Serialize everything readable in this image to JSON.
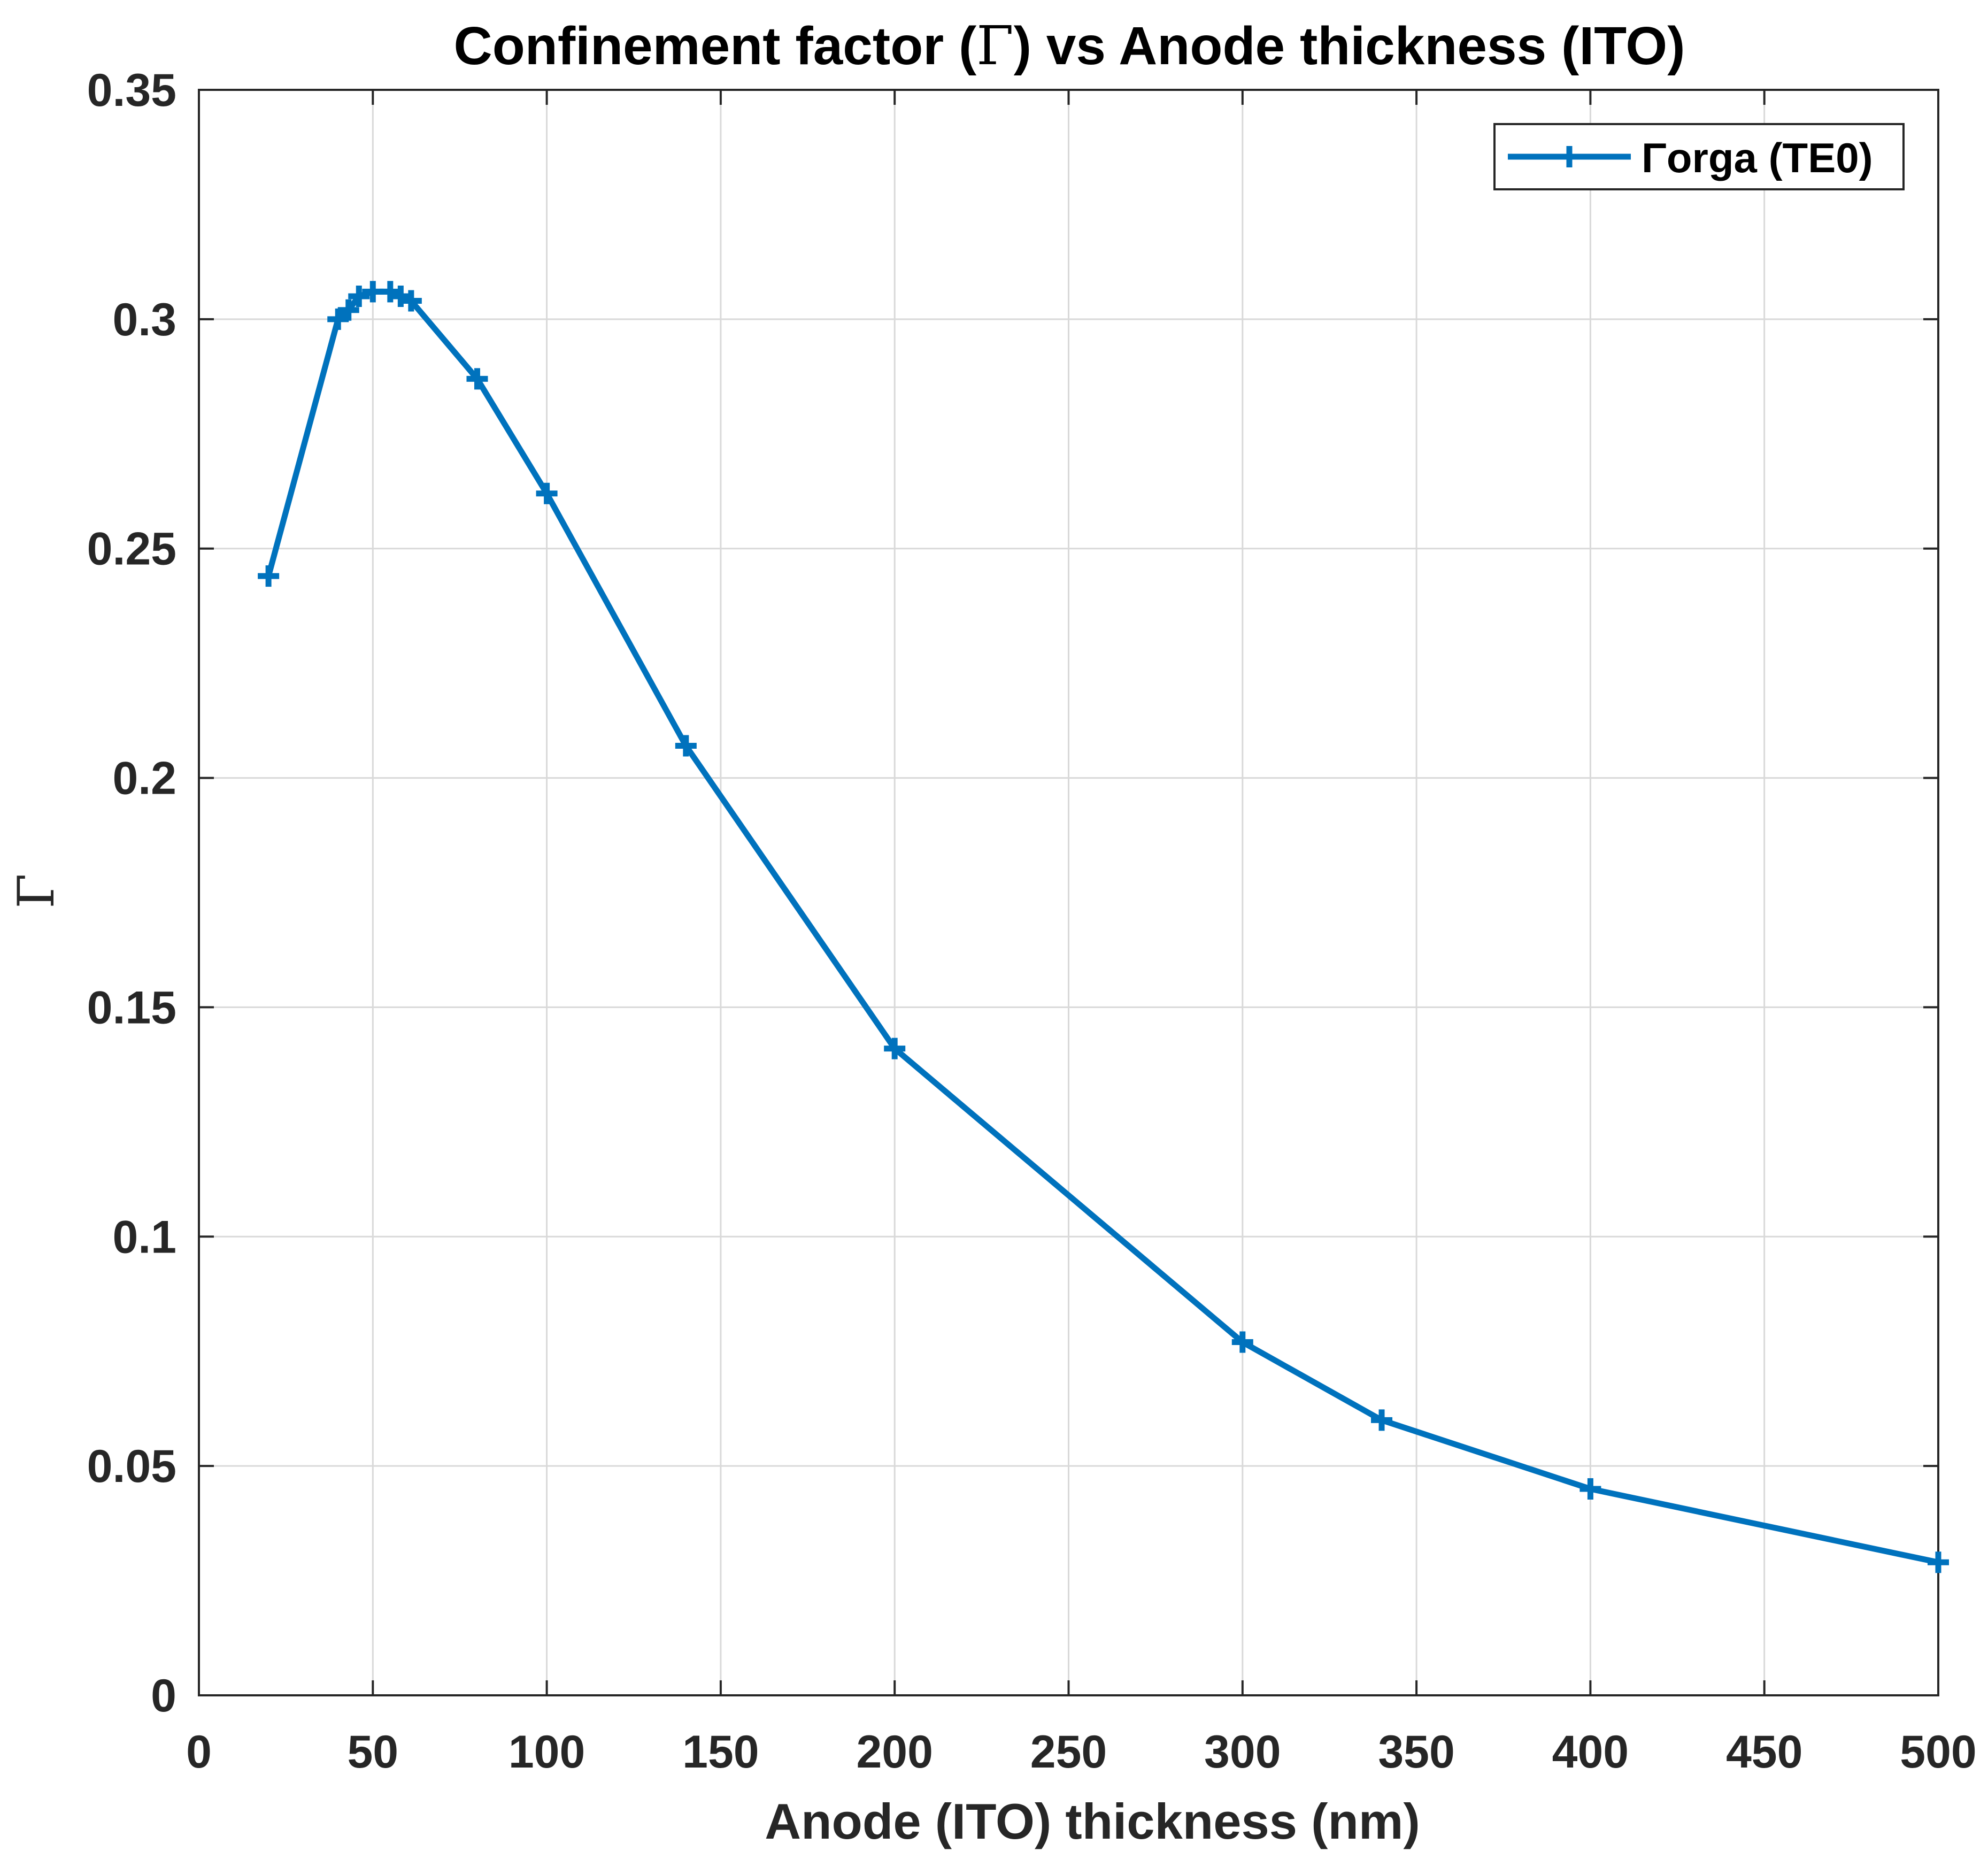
{
  "chart_data": {
    "type": "line",
    "title_prefix": "Confinement factor (",
    "title_symbol": "Γ",
    "title_suffix": ") vs Anode thickness (ITO)",
    "xlabel": "Anode (ITO) thickness (nm)",
    "ylabel": "Γ",
    "xlim": [
      0,
      500
    ],
    "ylim": [
      0,
      0.35
    ],
    "x_ticks": [
      0,
      50,
      100,
      150,
      200,
      250,
      300,
      350,
      400,
      450,
      500
    ],
    "x_tick_labels": [
      "0",
      "50",
      "100",
      "150",
      "200",
      "250",
      "300",
      "350",
      "400",
      "450",
      "500"
    ],
    "y_ticks": [
      0,
      0.05,
      0.1,
      0.15,
      0.2,
      0.25,
      0.3,
      0.35
    ],
    "y_tick_labels": [
      "0",
      "0.05",
      "0.1",
      "0.15",
      "0.2",
      "0.25",
      "0.3",
      "0.35"
    ],
    "grid": true,
    "legend_position": "top-right",
    "series": [
      {
        "name": "Γorga (TE0)",
        "color": "#0072BD",
        "marker": "plus",
        "x": [
          20,
          40,
          43,
          46,
          50,
          55,
          58,
          61,
          80,
          100,
          140,
          200,
          300,
          340,
          400,
          500
        ],
        "y": [
          0.244,
          0.3,
          0.302,
          0.305,
          0.306,
          0.306,
          0.305,
          0.304,
          0.287,
          0.262,
          0.207,
          0.141,
          0.077,
          0.06,
          0.045,
          0.029
        ]
      }
    ]
  },
  "colors": {
    "series": "#0072BD",
    "grid": "#d9d9d9",
    "axis": "#262626",
    "background": "#ffffff"
  }
}
